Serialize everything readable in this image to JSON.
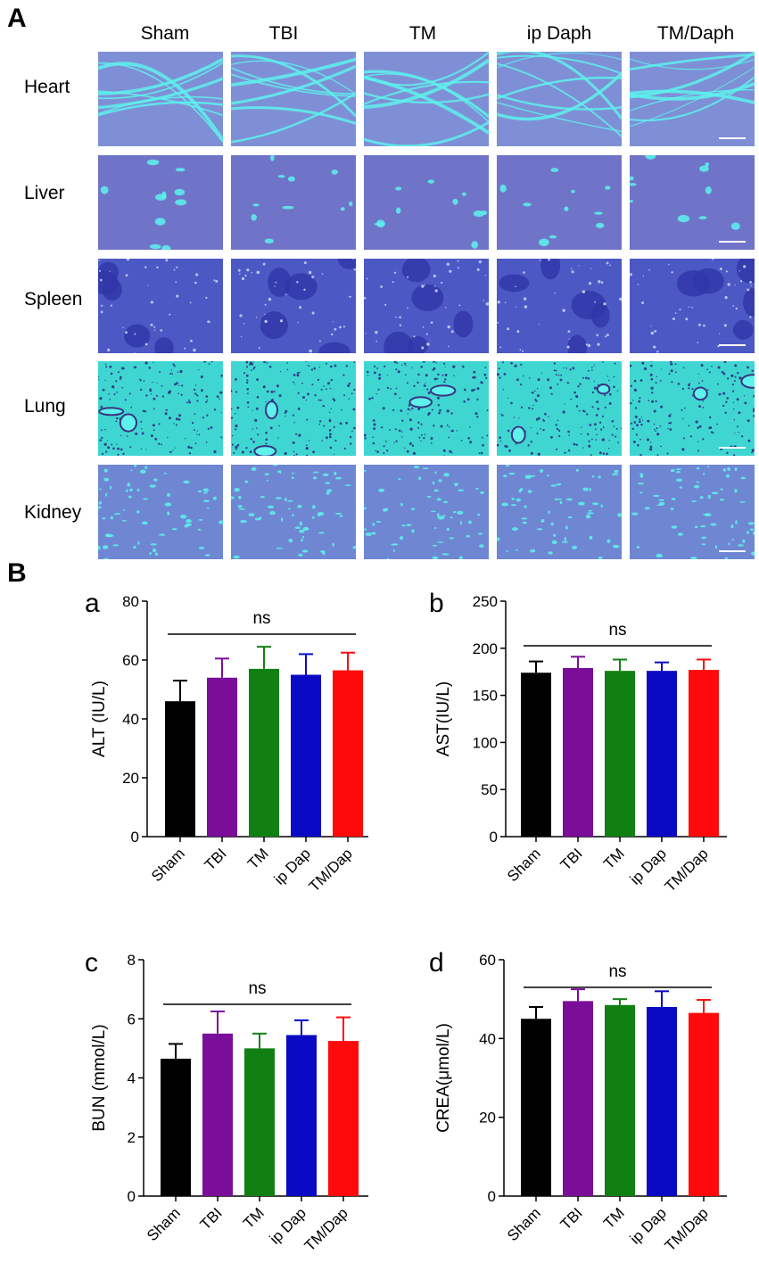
{
  "panelA": {
    "label": "A",
    "columns": [
      "Sham",
      "TBI",
      "TM",
      "ip Daph",
      "TM/Daph"
    ],
    "rows": [
      "Heart",
      "Liver",
      "Spleen",
      "Lung",
      "Kidney"
    ]
  },
  "panelB": {
    "label": "B"
  },
  "colors": {
    "Sham": "#000000",
    "TBI": "#7a0e99",
    "TM": "#118013",
    "ip Dap": "#0a0ac4",
    "TM/Dap": "#ff0a0a",
    "tissue_heart": "#7f8fd6",
    "tissue_liver": "#6f74c8",
    "tissue_spleen": "#4c58c4",
    "tissue_lung": "#3fd6d2",
    "tissue_kidney": "#6f86d2",
    "lumen": "#5df2ec"
  },
  "chart_data": [
    {
      "type": "bar",
      "panel": "a",
      "categories": [
        "Sham",
        "TBI",
        "TM",
        "ip Dap",
        "TM/Dap"
      ],
      "values": [
        46,
        54,
        57,
        55,
        56.5
      ],
      "errors": [
        7,
        6.5,
        7.5,
        7,
        6
      ],
      "ylabel": "ALT (IU/L)",
      "ylim": [
        0,
        80
      ],
      "yticks": [
        0,
        20,
        40,
        60,
        80
      ],
      "annotation": "ns"
    },
    {
      "type": "bar",
      "panel": "b",
      "categories": [
        "Sham",
        "TBI",
        "TM",
        "ip Dap",
        "TM/Dap"
      ],
      "values": [
        174,
        179,
        176,
        176,
        177
      ],
      "errors": [
        12,
        12,
        12,
        9,
        11
      ],
      "ylabel": "AST(IU/L)",
      "ylim": [
        0,
        250
      ],
      "yticks": [
        0,
        50,
        100,
        150,
        200,
        250
      ],
      "annotation": "ns"
    },
    {
      "type": "bar",
      "panel": "c",
      "categories": [
        "Sham",
        "TBI",
        "TM",
        "ip Dap",
        "TM/Dap"
      ],
      "values": [
        4.65,
        5.5,
        5.0,
        5.45,
        5.25
      ],
      "errors": [
        0.5,
        0.75,
        0.5,
        0.5,
        0.8
      ],
      "ylabel": "BUN (mmol/L)",
      "ylim": [
        0,
        8
      ],
      "yticks": [
        0,
        2,
        4,
        6,
        8
      ],
      "annotation": "ns"
    },
    {
      "type": "bar",
      "panel": "d",
      "categories": [
        "Sham",
        "TBI",
        "TM",
        "ip Dap",
        "TM/Dap"
      ],
      "values": [
        45,
        49.5,
        48.5,
        48,
        46.5
      ],
      "errors": [
        3,
        3,
        1.5,
        4,
        3.3
      ],
      "ylabel": "CREA(μmol/L)",
      "ylim": [
        0,
        60
      ],
      "yticks": [
        0,
        20,
        40,
        60
      ],
      "annotation": "ns"
    }
  ]
}
